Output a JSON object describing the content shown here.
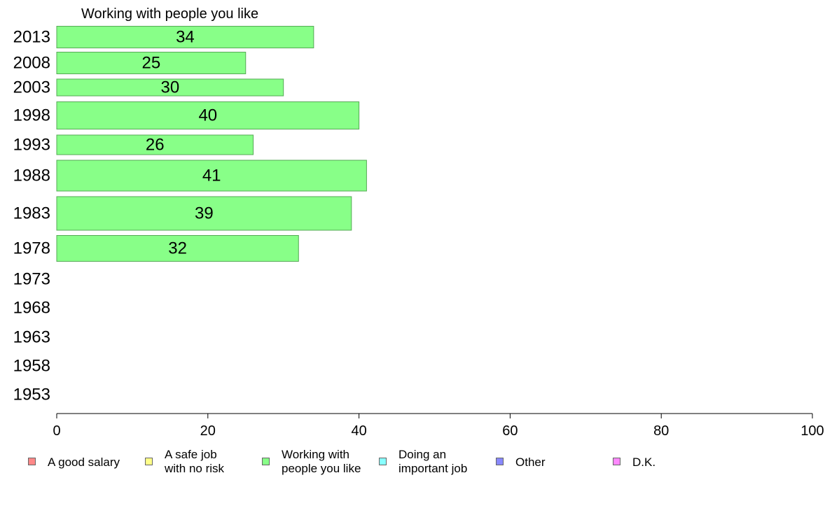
{
  "chart_data": {
    "type": "bar",
    "orientation": "horizontal",
    "title": "Working with people you like",
    "categories": [
      "2013",
      "2008",
      "2003",
      "1998",
      "1993",
      "1988",
      "1983",
      "1978",
      "1973",
      "1968",
      "1963",
      "1958",
      "1953"
    ],
    "series": [
      {
        "name": "Working with people you like",
        "color": "#88ff88",
        "values": [
          34,
          25,
          30,
          40,
          26,
          41,
          39,
          32,
          null,
          null,
          null,
          null,
          null
        ],
        "data_labels": [
          "34",
          "25",
          "30",
          "40",
          "26",
          "41",
          "39",
          "32",
          "",
          "",
          "",
          "",
          ""
        ]
      }
    ],
    "xlim": [
      0,
      100
    ],
    "xticks": [
      "0",
      "20",
      "40",
      "60",
      "80",
      "100"
    ],
    "grid": false,
    "legend_position": "bottom"
  },
  "legend": [
    {
      "label": "A good salary",
      "color": "#ff8888"
    },
    {
      "label": "A safe job\nwith no risk",
      "color": "#ffff88"
    },
    {
      "label": "Working with\npeople you like",
      "color": "#88ff88"
    },
    {
      "label": "Doing an\nimportant job",
      "color": "#88ffff"
    },
    {
      "label": "Other",
      "color": "#8888ff"
    },
    {
      "label": "D.K.",
      "color": "#ff88ff"
    }
  ]
}
